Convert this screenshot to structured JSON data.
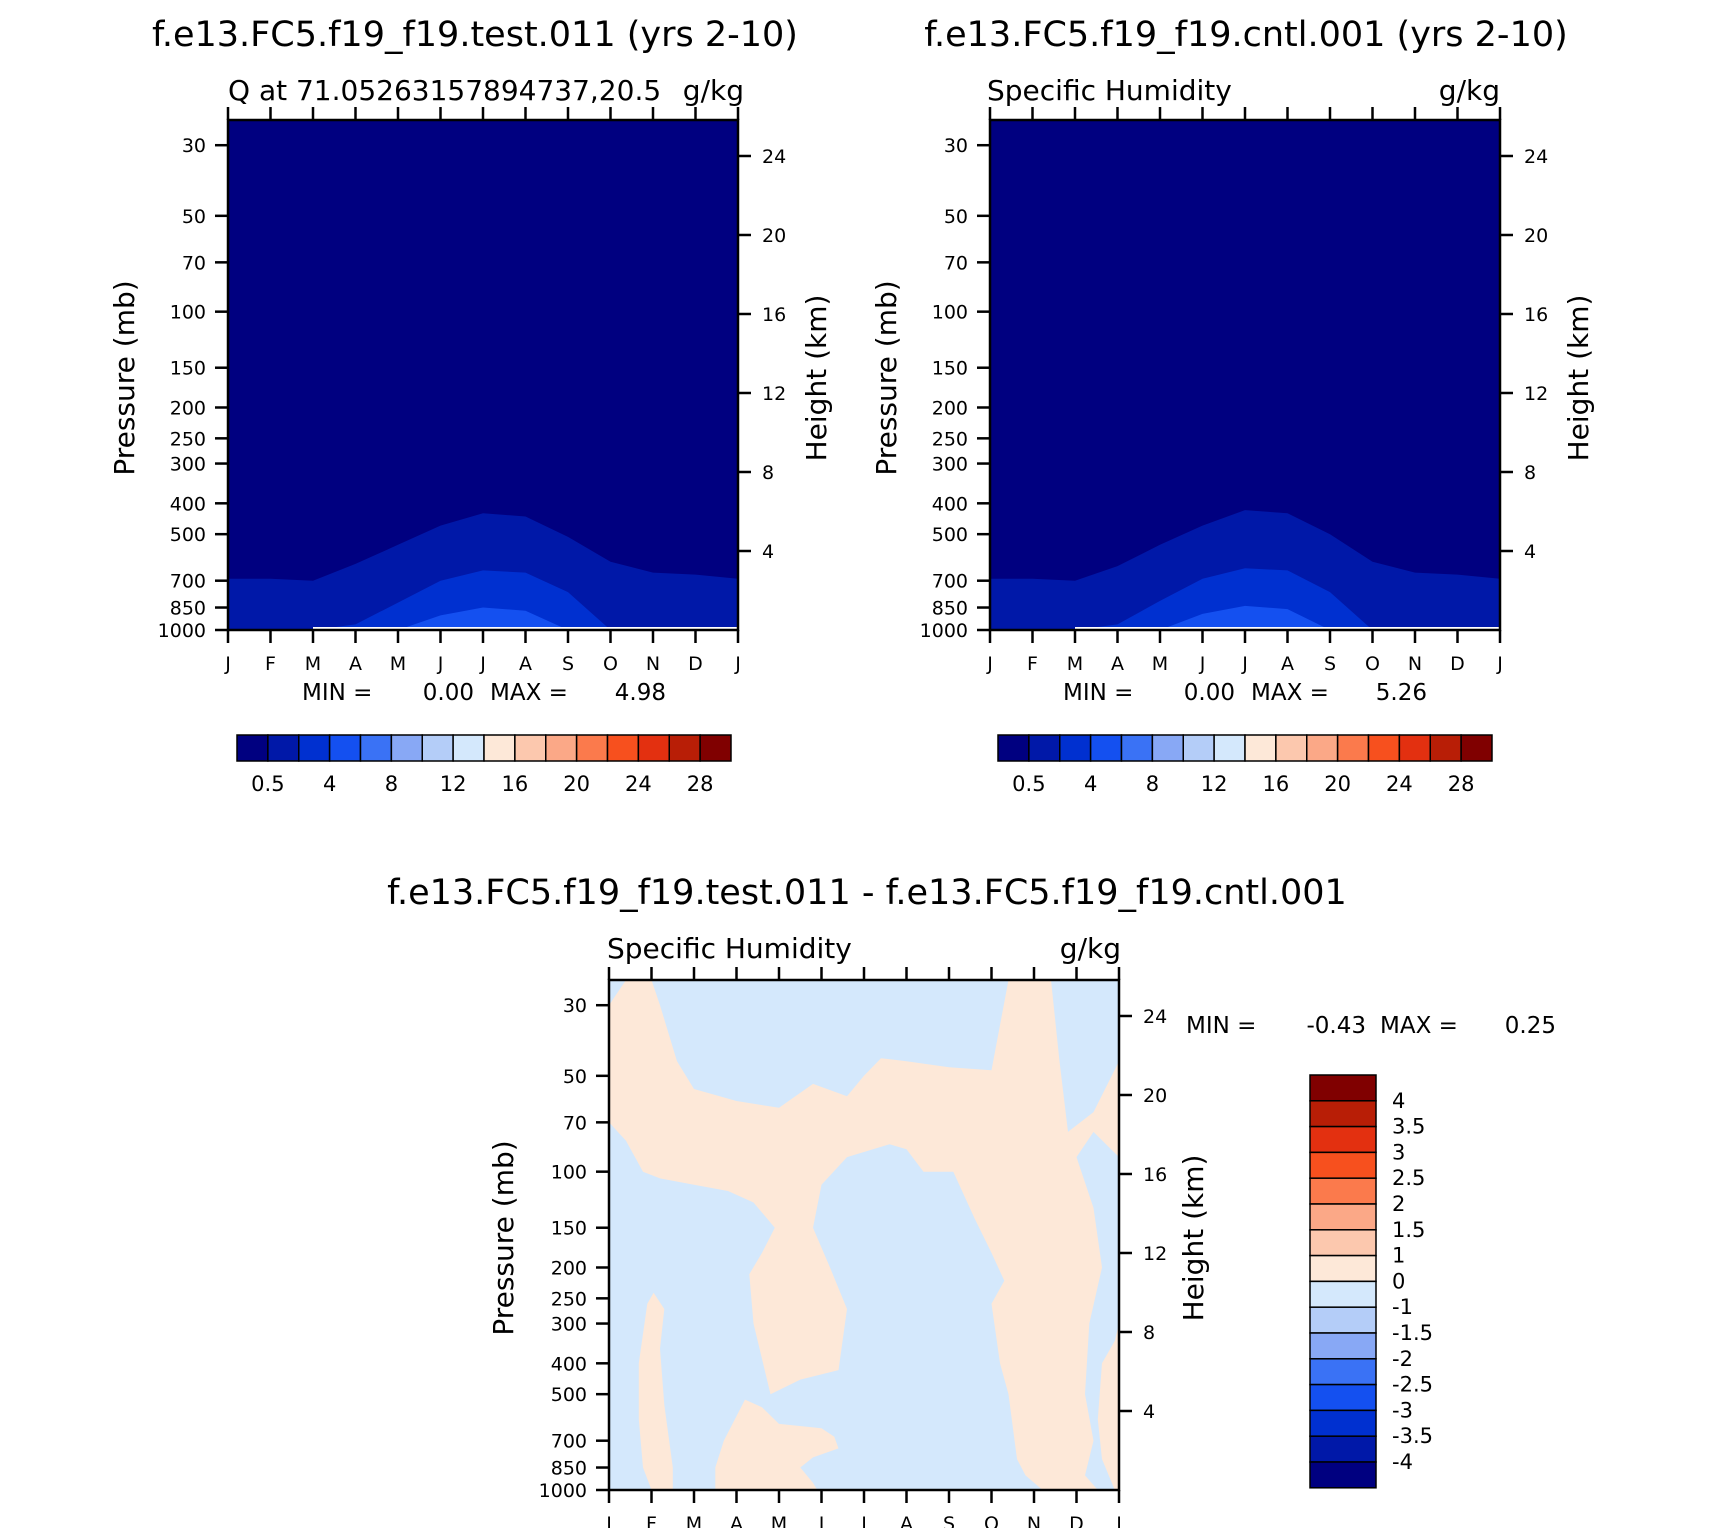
{
  "colors": {
    "seq": [
      "#000080",
      "#0018a8",
      "#0030d0",
      "#1450f0",
      "#3a72f5",
      "#88a8f5",
      "#b4cdf8",
      "#d4e8fc",
      "#fde8d8",
      "#fcc8ae",
      "#fba887",
      "#fb7a4c",
      "#f7501e",
      "#e33010",
      "#b81e06",
      "#800000"
    ],
    "diff": [
      "#000080",
      "#0018a8",
      "#0030d0",
      "#1450f0",
      "#3a72f5",
      "#88a8f5",
      "#b4cdf8",
      "#d4e8fc",
      "#fde8d8",
      "#fcc8ae",
      "#fba887",
      "#fb7a4c",
      "#f7501e",
      "#e33010",
      "#b81e06",
      "#800000"
    ]
  },
  "chart_data": [
    {
      "type": "heatmap",
      "case_title": "f.e13.FC5.f19_f19.test.011 (yrs 2-10)",
      "left_label": "Q at 71.05263157894737,20.5",
      "right_label": "g/kg",
      "ylabel": "Pressure (mb)",
      "ylabel_right": "Height (km)",
      "x_ticks": [
        "J",
        "F",
        "M",
        "A",
        "M",
        "J",
        "J",
        "A",
        "S",
        "O",
        "N",
        "D",
        "J"
      ],
      "y_ticks": [
        "30",
        "50",
        "70",
        "100",
        "150",
        "200",
        "250",
        "300",
        "400",
        "500",
        "700",
        "850",
        "1000"
      ],
      "y_ticks_right": [
        "24",
        "20",
        "16",
        "12",
        "8",
        "4"
      ],
      "ylim": [
        1000,
        25
      ],
      "stats": {
        "min_label": "MIN =",
        "min": "0.00",
        "max_label": "MAX =",
        "max": "4.98"
      },
      "colorbar_labels": [
        "0.5",
        "4",
        "8",
        "12",
        "16",
        "20",
        "24",
        "28"
      ],
      "contours": [
        {
          "level": 1,
          "top_mb": [
            690,
            690,
            700,
            620,
            540,
            470,
            430,
            440,
            510,
            610,
            660,
            670,
            690
          ]
        },
        {
          "level": 2,
          "top_mb": [
            1000,
            1000,
            1000,
            960,
            820,
            700,
            650,
            660,
            760,
            1000,
            1000,
            1000,
            1000
          ]
        },
        {
          "level": 3,
          "top_mb": [
            1000,
            1000,
            1000,
            1000,
            1000,
            900,
            850,
            870,
            1000,
            1000,
            1000,
            1000,
            1000
          ]
        }
      ]
    },
    {
      "type": "heatmap",
      "case_title": "f.e13.FC5.f19_f19.cntl.001 (yrs 2-10)",
      "left_label": "Specific Humidity",
      "right_label": "g/kg",
      "ylabel": "Pressure (mb)",
      "ylabel_right": "Height (km)",
      "x_ticks": [
        "J",
        "F",
        "M",
        "A",
        "M",
        "J",
        "J",
        "A",
        "S",
        "O",
        "N",
        "D",
        "J"
      ],
      "y_ticks": [
        "30",
        "50",
        "70",
        "100",
        "150",
        "200",
        "250",
        "300",
        "400",
        "500",
        "700",
        "850",
        "1000"
      ],
      "y_ticks_right": [
        "24",
        "20",
        "16",
        "12",
        "8",
        "4"
      ],
      "ylim": [
        1000,
        25
      ],
      "stats": {
        "min_label": "MIN =",
        "min": "0.00",
        "max_label": "MAX =",
        "max": "5.26"
      },
      "colorbar_labels": [
        "0.5",
        "4",
        "8",
        "12",
        "16",
        "20",
        "24",
        "28"
      ],
      "contours": [
        {
          "level": 1,
          "top_mb": [
            690,
            690,
            700,
            630,
            540,
            470,
            420,
            430,
            500,
            610,
            660,
            670,
            690
          ]
        },
        {
          "level": 2,
          "top_mb": [
            1000,
            1000,
            1000,
            960,
            810,
            690,
            640,
            650,
            760,
            1000,
            1000,
            1000,
            1000
          ]
        },
        {
          "level": 3,
          "top_mb": [
            1000,
            1000,
            1000,
            1000,
            1000,
            890,
            840,
            860,
            1000,
            1000,
            1000,
            1000,
            1000
          ]
        }
      ]
    },
    {
      "type": "heatmap",
      "case_title": "f.e13.FC5.f19_f19.test.011 - f.e13.FC5.f19_f19.cntl.001",
      "left_label": "Specific Humidity",
      "right_label": "g/kg",
      "ylabel": "Pressure (mb)",
      "ylabel_right": "Height (km)",
      "x_ticks": [
        "J",
        "F",
        "M",
        "A",
        "M",
        "J",
        "J",
        "A",
        "S",
        "O",
        "N",
        "D",
        "J"
      ],
      "y_ticks": [
        "30",
        "50",
        "70",
        "100",
        "150",
        "200",
        "250",
        "300",
        "400",
        "500",
        "700",
        "850",
        "1000"
      ],
      "y_ticks_right": [
        "24",
        "20",
        "16",
        "12",
        "8",
        "4"
      ],
      "ylim": [
        1000,
        25
      ],
      "stats": {
        "min_label": "MIN =",
        "min": "-0.43",
        "max_label": "MAX =",
        "max": "0.25"
      },
      "colorbar_labels": [
        "4",
        "3.5",
        "3",
        "2.5",
        "2",
        "1.5",
        "1",
        "0",
        "-1",
        "-1.5",
        "-2",
        "-2.5",
        "-3",
        "-3.5",
        "-4"
      ],
      "positive_regions": [
        [
          [
            0,
            30
          ],
          [
            0.4,
            25
          ],
          [
            1,
            25
          ],
          [
            1.2,
            30
          ],
          [
            1.6,
            45
          ],
          [
            2,
            55
          ],
          [
            3,
            60
          ],
          [
            4,
            63
          ],
          [
            4.8,
            53
          ],
          [
            5.6,
            58
          ],
          [
            6,
            50
          ],
          [
            6.4,
            44
          ],
          [
            7,
            45
          ],
          [
            8,
            47
          ],
          [
            9,
            48
          ],
          [
            9.4,
            25
          ],
          [
            10.4,
            25
          ],
          [
            10.6,
            45
          ],
          [
            10.8,
            75
          ],
          [
            11.4,
            65
          ],
          [
            12,
            45
          ],
          [
            12,
            90
          ],
          [
            11.4,
            75
          ],
          [
            11,
            90
          ],
          [
            11.4,
            130
          ],
          [
            11.6,
            200
          ],
          [
            11.3,
            300
          ],
          [
            11.2,
            500
          ],
          [
            11.4,
            700
          ],
          [
            11.2,
            900
          ],
          [
            11.5,
            1000
          ],
          [
            10.2,
            1000
          ],
          [
            9.8,
            900
          ],
          [
            9.6,
            800
          ],
          [
            9.4,
            500
          ],
          [
            9.2,
            400
          ],
          [
            9.0,
            260
          ],
          [
            9.3,
            220
          ],
          [
            9.0,
            180
          ],
          [
            8.6,
            140
          ],
          [
            8.1,
            100
          ],
          [
            7.4,
            100
          ],
          [
            7.0,
            85
          ],
          [
            6.6,
            82
          ],
          [
            5.6,
            90
          ],
          [
            5.0,
            110
          ],
          [
            4.8,
            150
          ],
          [
            5.2,
            200
          ],
          [
            5.6,
            270
          ],
          [
            5.4,
            420
          ],
          [
            4.5,
            450
          ],
          [
            3.8,
            500
          ],
          [
            3.4,
            300
          ],
          [
            3.3,
            210
          ],
          [
            3.6,
            180
          ],
          [
            3.9,
            150
          ],
          [
            3.4,
            125
          ],
          [
            2.8,
            115
          ],
          [
            2,
            110
          ],
          [
            1.2,
            105
          ],
          [
            0.8,
            100
          ],
          [
            0.4,
            80
          ],
          [
            0,
            70
          ]
        ],
        [
          [
            1.0,
            1000
          ],
          [
            0.8,
            850
          ],
          [
            0.7,
            600
          ],
          [
            0.7,
            400
          ],
          [
            0.9,
            260
          ],
          [
            1.05,
            240
          ],
          [
            1.3,
            270
          ],
          [
            1.2,
            360
          ],
          [
            1.3,
            540
          ],
          [
            1.5,
            850
          ],
          [
            1.5,
            1000
          ]
        ],
        [
          [
            2.5,
            1000
          ],
          [
            2.5,
            850
          ],
          [
            2.7,
            700
          ],
          [
            3.2,
            520
          ],
          [
            3.6,
            550
          ],
          [
            4.0,
            620
          ],
          [
            5.0,
            640
          ],
          [
            5.3,
            680
          ],
          [
            5.4,
            740
          ],
          [
            4.8,
            790
          ],
          [
            4.5,
            850
          ],
          [
            4.8,
            950
          ],
          [
            4.9,
            1000
          ]
        ],
        [
          [
            11.9,
            1000
          ],
          [
            11.6,
            800
          ],
          [
            11.5,
            600
          ],
          [
            11.6,
            400
          ],
          [
            11.9,
            340
          ],
          [
            12,
            300
          ],
          [
            12,
            1000
          ]
        ]
      ]
    }
  ]
}
